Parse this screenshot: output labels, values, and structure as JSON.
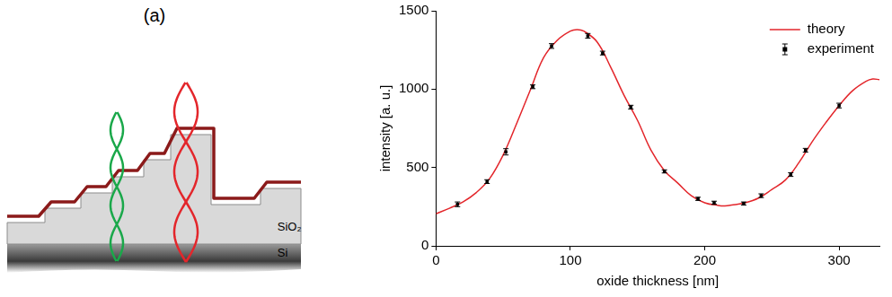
{
  "diagram": {
    "panel_label": "(a)",
    "layers": [
      "SiO₂",
      "Si"
    ]
  },
  "chart_data": {
    "type": "line",
    "x_label": "oxide thickness [nm]",
    "y_label": "intensity [a. u.]",
    "xlim": [
      0,
      330
    ],
    "xticks": [
      0,
      100,
      200,
      300
    ],
    "ylim": [
      0,
      1500
    ],
    "yticks": [
      0,
      500,
      1000,
      1500
    ],
    "grid": false,
    "legend": "upper-right",
    "series": [
      {
        "name": "theory",
        "type": "line",
        "color": "#e3262b",
        "line_style": "solid",
        "marker": "none",
        "x": [
          0,
          10,
          20,
          30,
          40,
          50,
          60,
          70,
          80,
          90,
          100,
          105,
          110,
          120,
          130,
          140,
          150,
          160,
          170,
          180,
          190,
          200,
          210,
          215,
          220,
          230,
          240,
          250,
          260,
          270,
          280,
          290,
          300,
          310,
          320,
          325,
          330
        ],
        "values": [
          205,
          240,
          280,
          340,
          430,
          580,
          780,
          990,
          1200,
          1310,
          1370,
          1380,
          1370,
          1300,
          1140,
          960,
          800,
          610,
          480,
          400,
          320,
          275,
          258,
          255,
          260,
          275,
          305,
          360,
          420,
          530,
          665,
          785,
          895,
          990,
          1050,
          1065,
          1060
        ]
      },
      {
        "name": "experiment",
        "type": "scatter",
        "color": "#000000",
        "marker": "square",
        "x": [
          16,
          38,
          52,
          72,
          86,
          113,
          124,
          145,
          170,
          195,
          207,
          229,
          242,
          264,
          275,
          300
        ],
        "values": [
          265,
          410,
          600,
          1015,
          1275,
          1340,
          1230,
          885,
          475,
          300,
          275,
          270,
          320,
          455,
          610,
          895
        ],
        "errors": [
          15,
          12,
          20,
          12,
          15,
          15,
          12,
          12,
          10,
          10,
          10,
          10,
          12,
          12,
          12,
          15
        ]
      }
    ]
  }
}
